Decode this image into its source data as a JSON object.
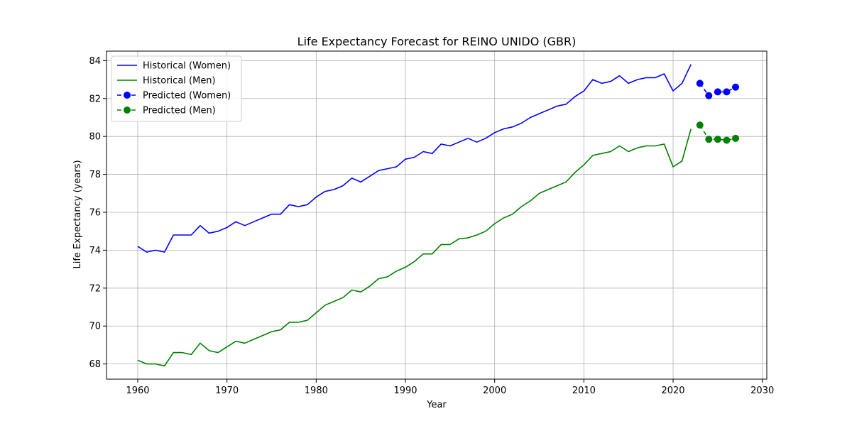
{
  "chart_data": {
    "type": "line",
    "title": "Life Expectancy Forecast for REINO UNIDO (GBR)",
    "xlabel": "Year",
    "ylabel": "Life Expectancy (years)",
    "xlim": [
      1956.5,
      2030.5
    ],
    "ylim": [
      67.2,
      84.5
    ],
    "xticks": [
      1960,
      1970,
      1980,
      1990,
      2000,
      2010,
      2020,
      2030
    ],
    "yticks": [
      68,
      70,
      72,
      74,
      76,
      78,
      80,
      82,
      84
    ],
    "grid": true,
    "legend_position": "top-left",
    "series": [
      {
        "name": "Historical (Women)",
        "color": "#0000ff",
        "style": "solid",
        "marker": "none",
        "x": [
          1960,
          1961,
          1962,
          1963,
          1964,
          1965,
          1966,
          1967,
          1968,
          1969,
          1970,
          1971,
          1972,
          1973,
          1974,
          1975,
          1976,
          1977,
          1978,
          1979,
          1980,
          1981,
          1982,
          1983,
          1984,
          1985,
          1986,
          1987,
          1988,
          1989,
          1990,
          1991,
          1992,
          1993,
          1994,
          1995,
          1996,
          1997,
          1998,
          1999,
          2000,
          2001,
          2002,
          2003,
          2004,
          2005,
          2006,
          2007,
          2008,
          2009,
          2010,
          2011,
          2012,
          2013,
          2014,
          2015,
          2016,
          2017,
          2018,
          2019,
          2020,
          2021,
          2022
        ],
        "y": [
          74.2,
          73.9,
          74.0,
          73.9,
          74.8,
          74.8,
          74.8,
          75.3,
          74.9,
          75.0,
          75.2,
          75.5,
          75.3,
          75.5,
          75.7,
          75.9,
          75.9,
          76.4,
          76.3,
          76.4,
          76.8,
          77.1,
          77.2,
          77.4,
          77.8,
          77.6,
          77.9,
          78.2,
          78.3,
          78.4,
          78.8,
          78.9,
          79.2,
          79.1,
          79.6,
          79.5,
          79.7,
          79.9,
          79.7,
          79.9,
          80.2,
          80.4,
          80.5,
          80.7,
          81.0,
          81.2,
          81.4,
          81.6,
          81.7,
          82.1,
          82.4,
          83.0,
          82.8,
          82.9,
          83.2,
          82.8,
          83.0,
          83.1,
          83.1,
          83.3,
          82.4,
          82.8,
          83.8
        ]
      },
      {
        "name": "Historical (Men)",
        "color": "#008000",
        "style": "solid",
        "marker": "none",
        "x": [
          1960,
          1961,
          1962,
          1963,
          1964,
          1965,
          1966,
          1967,
          1968,
          1969,
          1970,
          1971,
          1972,
          1973,
          1974,
          1975,
          1976,
          1977,
          1978,
          1979,
          1980,
          1981,
          1982,
          1983,
          1984,
          1985,
          1986,
          1987,
          1988,
          1989,
          1990,
          1991,
          1992,
          1993,
          1994,
          1995,
          1996,
          1997,
          1998,
          1999,
          2000,
          2001,
          2002,
          2003,
          2004,
          2005,
          2006,
          2007,
          2008,
          2009,
          2010,
          2011,
          2012,
          2013,
          2014,
          2015,
          2016,
          2017,
          2018,
          2019,
          2020,
          2021,
          2022
        ],
        "y": [
          68.2,
          68.0,
          68.0,
          67.9,
          68.6,
          68.6,
          68.5,
          69.1,
          68.7,
          68.6,
          68.9,
          69.2,
          69.1,
          69.3,
          69.5,
          69.7,
          69.8,
          70.2,
          70.2,
          70.3,
          70.7,
          71.1,
          71.3,
          71.5,
          71.9,
          71.8,
          72.1,
          72.5,
          72.6,
          72.9,
          73.1,
          73.4,
          73.8,
          73.8,
          74.3,
          74.3,
          74.6,
          74.65,
          74.8,
          75.0,
          75.4,
          75.7,
          75.9,
          76.3,
          76.6,
          77.0,
          77.2,
          77.4,
          77.6,
          78.1,
          78.5,
          79.0,
          79.1,
          79.2,
          79.5,
          79.2,
          79.4,
          79.5,
          79.5,
          79.6,
          78.4,
          78.7,
          80.4
        ]
      },
      {
        "name": "Predicted (Women)",
        "color": "#0000ff",
        "style": "dashed",
        "marker": "circle",
        "x": [
          2023,
          2024,
          2025,
          2026,
          2027
        ],
        "y": [
          82.8,
          82.15,
          82.35,
          82.35,
          82.6
        ]
      },
      {
        "name": "Predicted (Men)",
        "color": "#008000",
        "style": "dashed",
        "marker": "circle",
        "x": [
          2023,
          2024,
          2025,
          2026,
          2027
        ],
        "y": [
          80.6,
          79.85,
          79.85,
          79.8,
          79.9
        ]
      }
    ]
  }
}
